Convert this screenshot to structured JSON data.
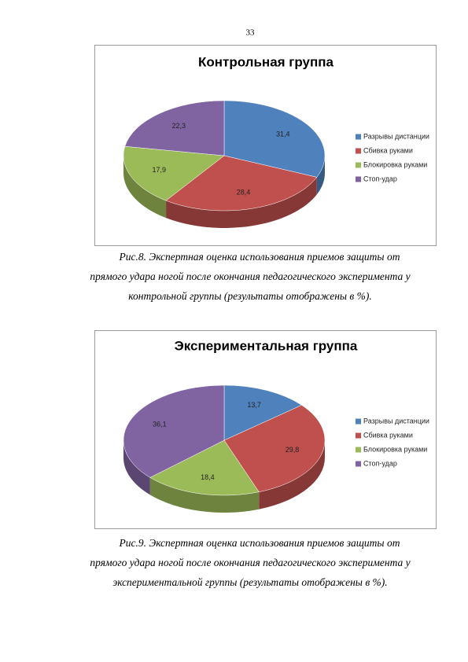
{
  "page_number": "33",
  "chart_data": [
    {
      "type": "pie",
      "title": "Контрольная группа",
      "categories": [
        "Разрывы дистанции",
        "Сбивка руками",
        "Блокировка руками",
        "Стоп-удар"
      ],
      "values": [
        31.4,
        28.4,
        17.9,
        22.3
      ],
      "value_labels": [
        "31,4",
        "28,4",
        "17,9",
        "22,3"
      ],
      "colors": [
        "#4f81bd",
        "#c0504d",
        "#9bbb59",
        "#8064a2"
      ]
    },
    {
      "type": "pie",
      "title": "Экспериментальная группа",
      "categories": [
        "Разрывы дистанции",
        "Сбивка руками",
        "Блокировка руками",
        "Стоп-удар"
      ],
      "values": [
        13.7,
        29.8,
        18.4,
        36.1
      ],
      "value_labels": [
        "13,7",
        "29,8",
        "18,4",
        "36,1"
      ],
      "colors": [
        "#4f81bd",
        "#c0504d",
        "#9bbb59",
        "#8064a2"
      ]
    }
  ],
  "captions": [
    [
      "Рис.8. Экспертная оценка использования приемов защиты от",
      "прямого удара ногой после окончания педагогического эксперимента у",
      "контрольной группы (результаты отображены в %)."
    ],
    [
      "Рис.9. Экспертная оценка использования приемов защиты от",
      "прямого удара ногой после окончания педагогического эксперимента у",
      "экспериментальной группы (результаты отображены в %)."
    ]
  ]
}
